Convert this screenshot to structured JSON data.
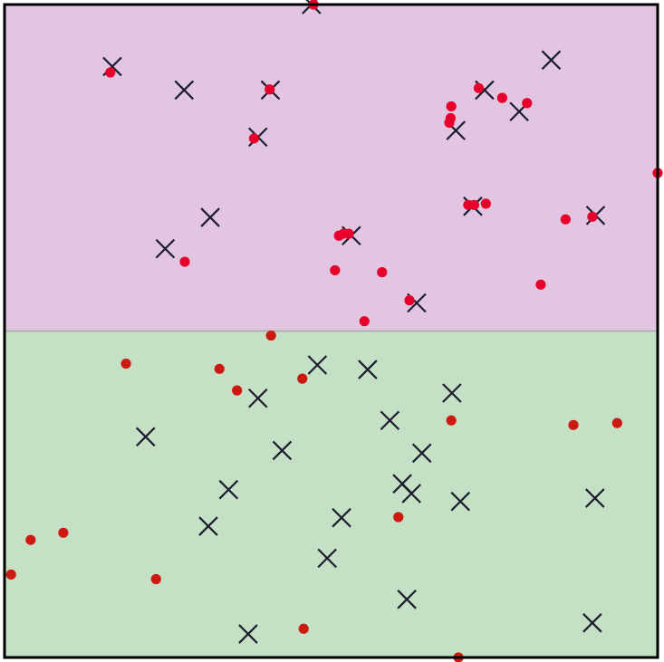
{
  "chart_data": {
    "type": "scatter",
    "xlim": [
      0,
      100
    ],
    "ylim": [
      0,
      100
    ],
    "grid": false,
    "legend": "none",
    "regions": [
      {
        "y_from": 50,
        "y_to": 100,
        "color": "#e2c6e1"
      },
      {
        "y_from": 0,
        "y_to": 50,
        "color": "#c5e1c5"
      }
    ],
    "boundary_y": 50,
    "boundary_color": "#a8a8a8",
    "border_color": "#000000",
    "series": [
      {
        "marker": "x",
        "color": "#1c1c2e",
        "points": [
          [
            47.0,
            100.0
          ],
          [
            16.5,
            90.5
          ],
          [
            27.5,
            86.9
          ],
          [
            40.7,
            86.9
          ],
          [
            83.7,
            91.5
          ],
          [
            73.5,
            86.9
          ],
          [
            78.8,
            83.6
          ],
          [
            69.1,
            80.7
          ],
          [
            38.8,
            79.7
          ],
          [
            31.5,
            67.4
          ],
          [
            24.6,
            62.6
          ],
          [
            53.1,
            64.6
          ],
          [
            71.7,
            69.1
          ],
          [
            90.5,
            67.7
          ],
          [
            63.1,
            54.3
          ],
          [
            47.9,
            44.8
          ],
          [
            55.6,
            44.1
          ],
          [
            38.8,
            39.7
          ],
          [
            68.5,
            40.5
          ],
          [
            59.0,
            36.3
          ],
          [
            21.6,
            33.8
          ],
          [
            42.5,
            31.7
          ],
          [
            63.9,
            31.3
          ],
          [
            34.3,
            25.7
          ],
          [
            60.9,
            26.6
          ],
          [
            62.3,
            25.1
          ],
          [
            69.8,
            23.9
          ],
          [
            90.4,
            24.4
          ],
          [
            51.6,
            21.4
          ],
          [
            31.2,
            20.1
          ],
          [
            49.4,
            15.2
          ],
          [
            61.6,
            8.9
          ],
          [
            90.0,
            5.3
          ],
          [
            37.3,
            3.6
          ]
        ]
      },
      {
        "marker": "dot",
        "color": "#e8002c",
        "points": [
          [
            47.3,
            100.0
          ],
          [
            16.2,
            89.6
          ],
          [
            40.6,
            87.0
          ],
          [
            38.2,
            79.5
          ],
          [
            72.6,
            87.2
          ],
          [
            76.2,
            85.7
          ],
          [
            80.0,
            84.9
          ],
          [
            68.4,
            84.4
          ],
          [
            68.3,
            82.6
          ],
          [
            68.1,
            81.9
          ],
          [
            100.0,
            74.2
          ],
          [
            71.0,
            69.3
          ],
          [
            71.9,
            69.3
          ],
          [
            73.7,
            69.5
          ],
          [
            85.9,
            67.1
          ],
          [
            90.0,
            67.5
          ],
          [
            51.2,
            64.6
          ],
          [
            51.9,
            64.9
          ],
          [
            52.7,
            64.9
          ],
          [
            27.6,
            60.6
          ],
          [
            50.6,
            59.3
          ],
          [
            57.8,
            59.0
          ],
          [
            82.1,
            57.1
          ],
          [
            62.0,
            54.7
          ],
          [
            55.1,
            51.5
          ]
        ]
      },
      {
        "marker": "dot",
        "color": "#cc1a12",
        "points": [
          [
            40.8,
            49.3
          ],
          [
            18.6,
            45.0
          ],
          [
            32.9,
            44.2
          ],
          [
            45.6,
            42.7
          ],
          [
            35.6,
            40.9
          ],
          [
            68.4,
            36.3
          ],
          [
            87.1,
            35.6
          ],
          [
            93.8,
            35.9
          ],
          [
            60.3,
            21.5
          ],
          [
            9.0,
            19.1
          ],
          [
            4.0,
            18.0
          ],
          [
            1.0,
            12.7
          ],
          [
            23.2,
            12.0
          ],
          [
            45.8,
            4.4
          ],
          [
            69.5,
            0.0
          ]
        ]
      }
    ]
  }
}
